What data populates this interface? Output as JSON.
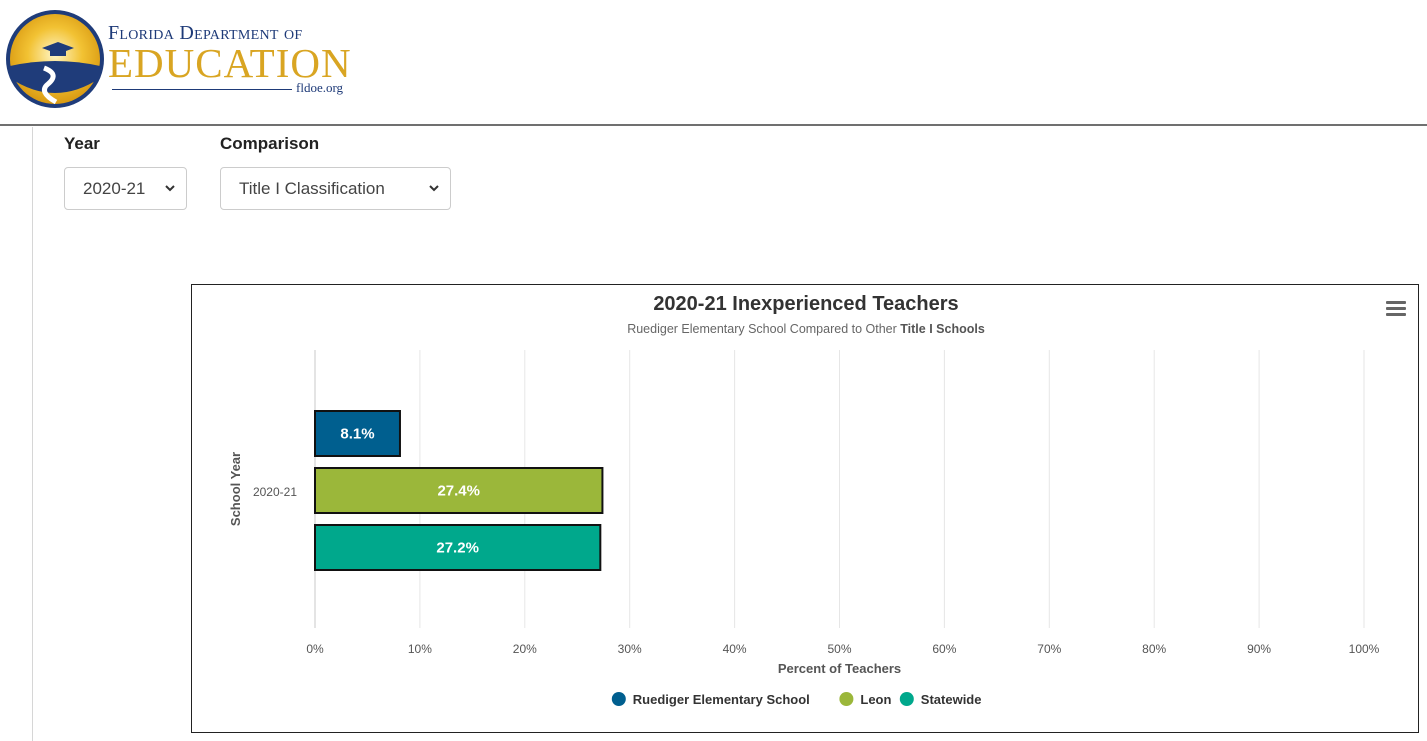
{
  "header": {
    "logo_line1": "Florida Department of",
    "logo_line2": "EDUCATION",
    "logo_url": "fldoe.org"
  },
  "filters": {
    "year_label": "Year",
    "year_value": "2020-21",
    "comparison_label": "Comparison",
    "comparison_value": "Title I Classification"
  },
  "chart": {
    "menu_icon": "hamburger-icon"
  },
  "chart_data": {
    "type": "bar",
    "orientation": "horizontal",
    "title": "2020-21 Inexperienced Teachers",
    "subtitle_prefix": "Ruediger Elementary School Compared to Other ",
    "subtitle_bold": "Title I Schools",
    "categories": [
      "2020-21"
    ],
    "xlabel": "Percent of Teachers",
    "ylabel": "School Year",
    "xlim": [
      0,
      100
    ],
    "xticks": [
      "0%",
      "10%",
      "20%",
      "30%",
      "40%",
      "50%",
      "60%",
      "70%",
      "80%",
      "90%",
      "100%"
    ],
    "grid": true,
    "legend_position": "bottom",
    "series": [
      {
        "name": "Ruediger Elementary School",
        "values": [
          8.1
        ],
        "label": "8.1%",
        "color": "#005f8f"
      },
      {
        "name": "Leon",
        "values": [
          27.4
        ],
        "label": "27.4%",
        "color": "#9bb73a"
      },
      {
        "name": "Statewide",
        "values": [
          27.2
        ],
        "label": "27.2%",
        "color": "#00a88c"
      }
    ]
  }
}
